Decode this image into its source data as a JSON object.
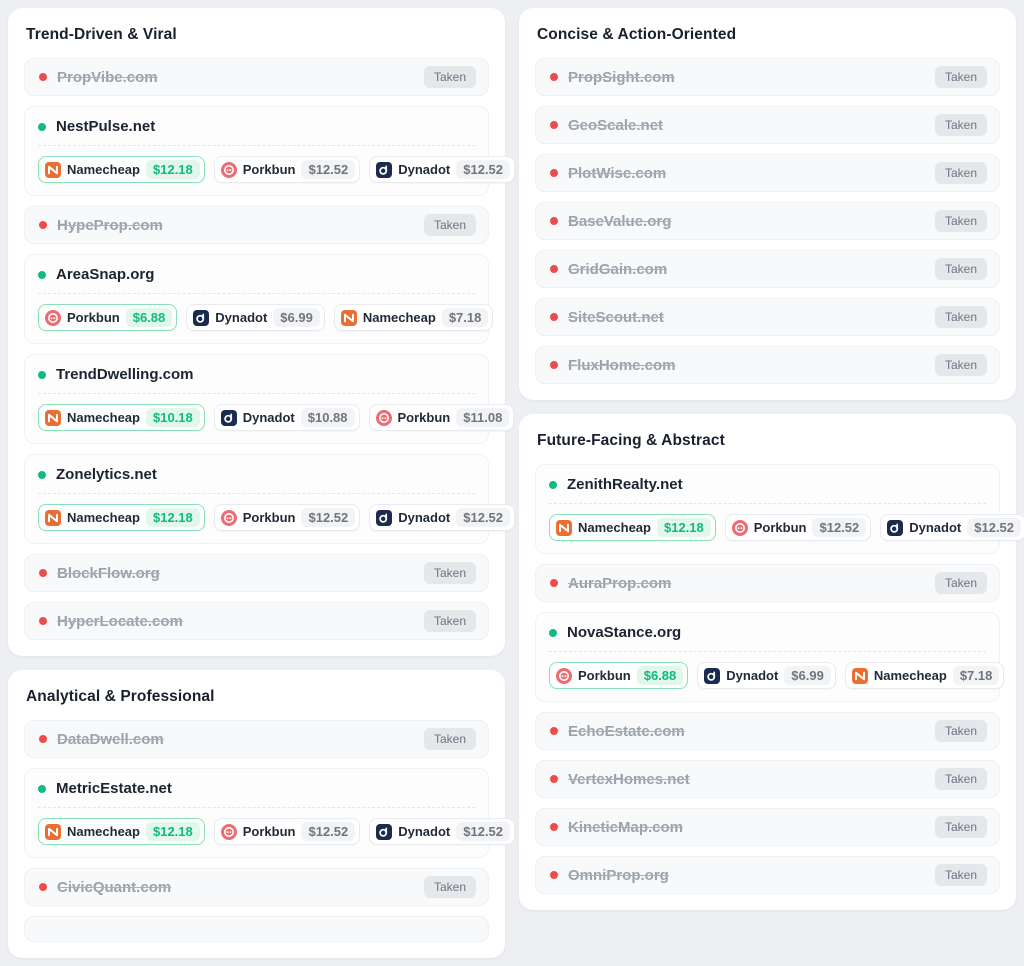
{
  "ui": {
    "taken_badge_label": "Taken"
  },
  "colors": {
    "taken_red": "#ef4b4b",
    "available_green": "#12b981",
    "best_price_green": "#10b981",
    "namecheap_orange": "#eb6d32",
    "porkbun_salmon": "#ee6b72",
    "dynadot_navy": "#1b2b50"
  },
  "icon_names": {
    "Namecheap": "namecheap-logo-icon",
    "Porkbun": "porkbun-logo-icon",
    "Dynadot": "dynadot-logo-icon"
  },
  "columns": [
    {
      "sections": [
        {
          "title": "Trend-Driven & Viral",
          "items": [
            {
              "domain": "PropVibe.com",
              "status": "taken"
            },
            {
              "domain": "NestPulse.net",
              "status": "available",
              "offers": [
                {
                  "registrar": "Namecheap",
                  "price": "$12.18",
                  "best": true
                },
                {
                  "registrar": "Porkbun",
                  "price": "$12.52",
                  "best": false
                },
                {
                  "registrar": "Dynadot",
                  "price": "$12.52",
                  "best": false
                }
              ]
            },
            {
              "domain": "HypeProp.com",
              "status": "taken"
            },
            {
              "domain": "AreaSnap.org",
              "status": "available",
              "offers": [
                {
                  "registrar": "Porkbun",
                  "price": "$6.88",
                  "best": true
                },
                {
                  "registrar": "Dynadot",
                  "price": "$6.99",
                  "best": false
                },
                {
                  "registrar": "Namecheap",
                  "price": "$7.18",
                  "best": false
                }
              ]
            },
            {
              "domain": "TrendDwelling.com",
              "status": "available",
              "offers": [
                {
                  "registrar": "Namecheap",
                  "price": "$10.18",
                  "best": true
                },
                {
                  "registrar": "Dynadot",
                  "price": "$10.88",
                  "best": false
                },
                {
                  "registrar": "Porkbun",
                  "price": "$11.08",
                  "best": false
                }
              ]
            },
            {
              "domain": "Zonelytics.net",
              "status": "available",
              "offers": [
                {
                  "registrar": "Namecheap",
                  "price": "$12.18",
                  "best": true
                },
                {
                  "registrar": "Porkbun",
                  "price": "$12.52",
                  "best": false
                },
                {
                  "registrar": "Dynadot",
                  "price": "$12.52",
                  "best": false
                }
              ]
            },
            {
              "domain": "BlockFlow.org",
              "status": "taken"
            },
            {
              "domain": "HyperLocate.com",
              "status": "taken"
            }
          ]
        },
        {
          "title": "Analytical & Professional",
          "items": [
            {
              "domain": "DataDwell.com",
              "status": "taken"
            },
            {
              "domain": "MetricEstate.net",
              "status": "available",
              "offers": [
                {
                  "registrar": "Namecheap",
                  "price": "$12.18",
                  "best": true
                },
                {
                  "registrar": "Porkbun",
                  "price": "$12.52",
                  "best": false
                },
                {
                  "registrar": "Dynadot",
                  "price": "$12.52",
                  "best": false
                }
              ]
            },
            {
              "domain": "CivicQuant.com",
              "status": "taken"
            },
            {
              "partial": true
            }
          ]
        }
      ]
    },
    {
      "sections": [
        {
          "title": "Concise & Action-Oriented",
          "items": [
            {
              "domain": "PropSight.com",
              "status": "taken"
            },
            {
              "domain": "GeoScale.net",
              "status": "taken"
            },
            {
              "domain": "PlotWise.com",
              "status": "taken"
            },
            {
              "domain": "BaseValue.org",
              "status": "taken"
            },
            {
              "domain": "GridGain.com",
              "status": "taken"
            },
            {
              "domain": "SiteScout.net",
              "status": "taken"
            },
            {
              "domain": "FluxHome.com",
              "status": "taken"
            }
          ]
        },
        {
          "title": "Future-Facing & Abstract",
          "items": [
            {
              "domain": "ZenithRealty.net",
              "status": "available",
              "offers": [
                {
                  "registrar": "Namecheap",
                  "price": "$12.18",
                  "best": true
                },
                {
                  "registrar": "Porkbun",
                  "price": "$12.52",
                  "best": false
                },
                {
                  "registrar": "Dynadot",
                  "price": "$12.52",
                  "best": false
                }
              ]
            },
            {
              "domain": "AuraProp.com",
              "status": "taken"
            },
            {
              "domain": "NovaStance.org",
              "status": "available",
              "offers": [
                {
                  "registrar": "Porkbun",
                  "price": "$6.88",
                  "best": true
                },
                {
                  "registrar": "Dynadot",
                  "price": "$6.99",
                  "best": false
                },
                {
                  "registrar": "Namecheap",
                  "price": "$7.18",
                  "best": false
                }
              ]
            },
            {
              "domain": "EchoEstate.com",
              "status": "taken"
            },
            {
              "domain": "VertexHomes.net",
              "status": "taken"
            },
            {
              "domain": "KineticMap.com",
              "status": "taken"
            },
            {
              "domain": "OmniProp.org",
              "status": "taken"
            }
          ]
        }
      ]
    }
  ]
}
